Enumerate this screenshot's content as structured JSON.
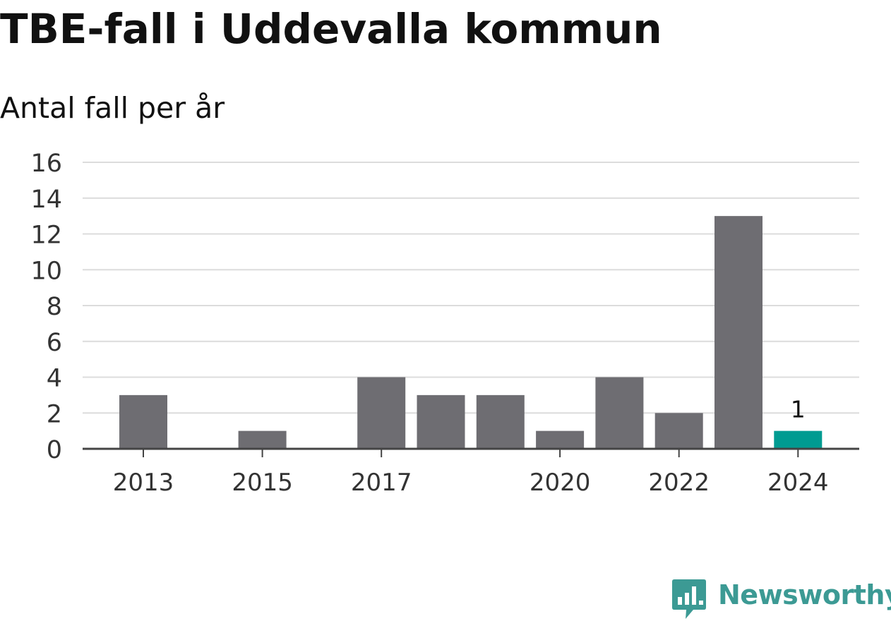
{
  "title": "TBE-fall i Uddevalla kommun",
  "subtitle": "Antal fall per år",
  "brand": {
    "name": "Newsworthy",
    "logo_icon": "bar-chart-speech-bubble-icon",
    "color": "#3c9a94"
  },
  "chart_data": {
    "type": "bar",
    "categories": [
      "2013",
      "2014",
      "2015",
      "2016",
      "2017",
      "2018",
      "2019",
      "2020",
      "2021",
      "2022",
      "2023",
      "2024"
    ],
    "values": [
      3,
      0,
      1,
      0,
      4,
      3,
      3,
      1,
      4,
      2,
      13,
      1
    ],
    "x_tick_labels": [
      "2013",
      "",
      "2015",
      "",
      "2017",
      "",
      "",
      "2020",
      "",
      "2022",
      "",
      "2024"
    ],
    "y_ticks": [
      "0",
      "2",
      "4",
      "6",
      "8",
      "10",
      "12",
      "14",
      "16"
    ],
    "ylim": [
      0,
      16
    ],
    "grid": true,
    "legend": false,
    "bar_color": "#6e6d72",
    "highlight_color": "#009b91",
    "highlight_index": 11,
    "data_labels": [
      {
        "index": 11,
        "text": "1"
      }
    ]
  }
}
